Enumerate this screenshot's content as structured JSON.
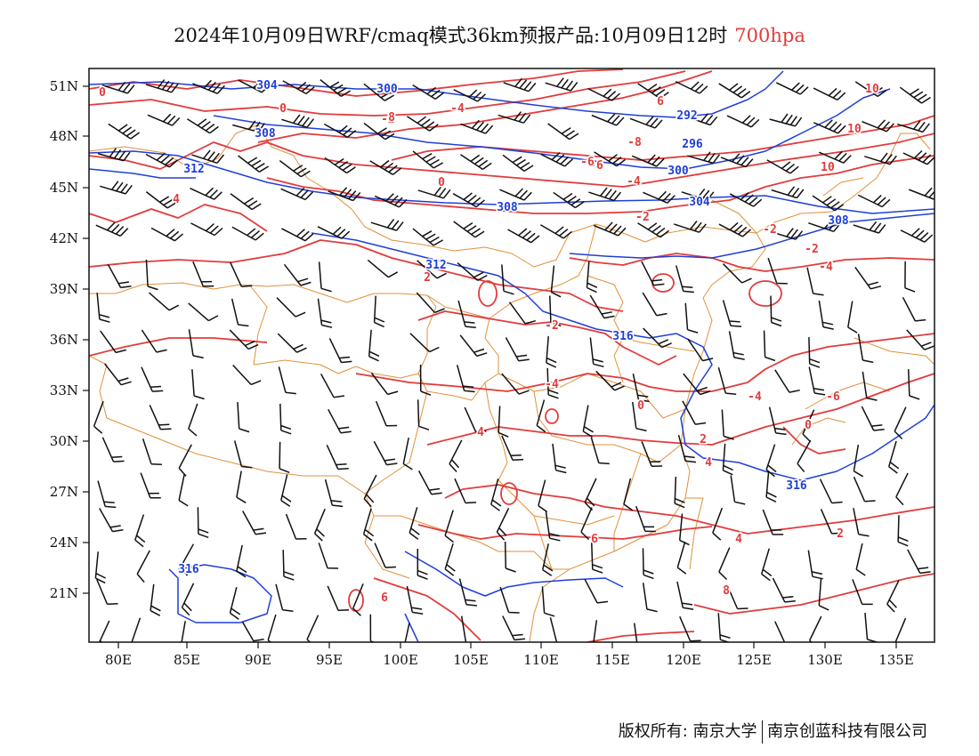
{
  "title": {
    "text": "2024年10月09日WRF/cmaq模式36km预报产品:10月09日12时",
    "level": "700hpa",
    "level_color": "#e23b3b"
  },
  "axes": {
    "lat_ticks": [
      "51N",
      "48N",
      "45N",
      "42N",
      "39N",
      "36N",
      "33N",
      "30N",
      "27N",
      "24N",
      "21N"
    ],
    "lon_ticks": [
      "80E",
      "85E",
      "90E",
      "95E",
      "100E",
      "105E",
      "110E",
      "115E",
      "120E",
      "125E",
      "130E",
      "135E"
    ],
    "lon_range": [
      78,
      138
    ],
    "lat_range": [
      18,
      52
    ]
  },
  "colors": {
    "temperature_contour": "#e23b3b",
    "height_contour": "#1f3fd6",
    "boundary": "#e0913a",
    "wind_barb": "#111111"
  },
  "height_labels": [
    "304",
    "300",
    "292",
    "296",
    "300",
    "304",
    "308",
    "312",
    "308",
    "312",
    "308",
    "316",
    "316",
    "316"
  ],
  "temp_labels": [
    "0",
    "0",
    "-2",
    "-4",
    "-6",
    "-8",
    "-6",
    "-4",
    "-2",
    "0",
    "-2",
    "-4",
    "2",
    "4",
    "-4",
    "-6",
    "0",
    "4",
    "0",
    "2",
    "4",
    "6",
    "4",
    "2",
    "6",
    "8",
    "6",
    "8",
    "10",
    "10",
    "10",
    "-2",
    "-2",
    "-4"
  ],
  "footer": {
    "left": "版权所有: 南京大学",
    "right": "南京创蓝科技有限公司"
  }
}
